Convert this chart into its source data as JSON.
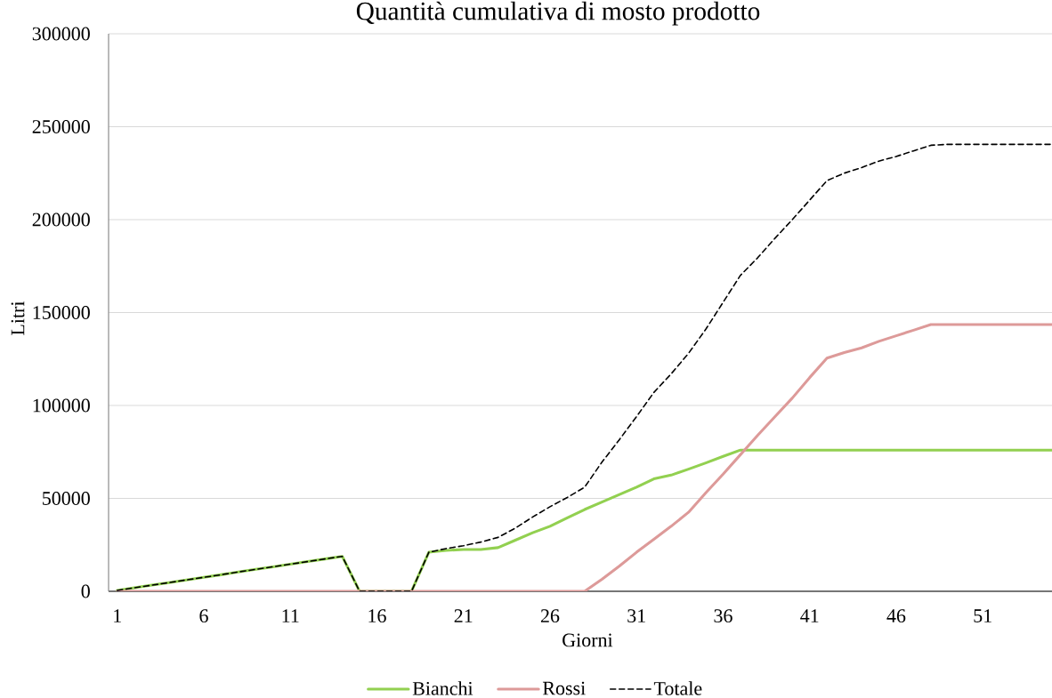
{
  "chart_data": {
    "type": "line",
    "title": "Quantità cumulativa di mosto prodotto",
    "xlabel": "Giorni",
    "ylabel": "Litri",
    "x": [
      1,
      2,
      3,
      4,
      5,
      6,
      7,
      8,
      9,
      10,
      11,
      12,
      13,
      14,
      15,
      16,
      17,
      18,
      19,
      20,
      21,
      22,
      23,
      24,
      25,
      26,
      27,
      28,
      29,
      30,
      31,
      32,
      33,
      34,
      35,
      36,
      37,
      38,
      39,
      40,
      41,
      42,
      43,
      44,
      45,
      46,
      47,
      48,
      49,
      50,
      51,
      52,
      53,
      54,
      55
    ],
    "xlim": [
      0.5,
      55
    ],
    "xticks": [
      1,
      6,
      11,
      16,
      21,
      26,
      31,
      36,
      41,
      46,
      51
    ],
    "ylim": [
      0,
      300000
    ],
    "yticks": [
      0,
      50000,
      100000,
      150000,
      200000,
      250000,
      300000
    ],
    "grid": "y",
    "legend": "bottom",
    "series": [
      {
        "name": "Bianchi",
        "color": "#92d050",
        "values": [
          500,
          1900,
          3300,
          4700,
          6100,
          7500,
          8900,
          10400,
          11800,
          13200,
          14600,
          16000,
          17400,
          18800,
          0,
          0,
          0,
          0,
          21000,
          22000,
          22500,
          22500,
          23500,
          27500,
          31500,
          35000,
          39500,
          44000,
          48000,
          52000,
          56000,
          60500,
          62500,
          65700,
          69100,
          72600,
          76000,
          76000,
          76000,
          76000,
          76000,
          76000,
          76000,
          76000,
          76000,
          76000,
          76000,
          76000,
          76000,
          76000,
          76000,
          76000,
          76000,
          76000,
          76000
        ]
      },
      {
        "name": "Rossi",
        "color": "#dd9a99",
        "values": [
          0,
          0,
          0,
          0,
          0,
          0,
          0,
          0,
          0,
          0,
          0,
          0,
          0,
          0,
          0,
          0,
          0,
          0,
          0,
          0,
          0,
          0,
          0,
          0,
          0,
          0,
          0,
          0,
          6500,
          13500,
          21000,
          28000,
          35000,
          42500,
          53000,
          63000,
          73500,
          84000,
          94000,
          104000,
          115000,
          125500,
          128500,
          131000,
          134500,
          137500,
          140500,
          143500,
          143500,
          143500,
          143500,
          143500,
          143500,
          143500,
          143500
        ]
      },
      {
        "name": "Totale",
        "color": "#000000",
        "line_style": "dashed",
        "values": [
          500,
          1900,
          3300,
          4700,
          6100,
          7500,
          8900,
          10400,
          11800,
          13200,
          14600,
          16000,
          17400,
          18800,
          0,
          0,
          0,
          0,
          21000,
          23000,
          24500,
          26500,
          29000,
          34000,
          40000,
          45500,
          50500,
          56000,
          69500,
          81500,
          94000,
          107000,
          117000,
          128000,
          141000,
          155500,
          170000,
          179500,
          190000,
          200000,
          210500,
          221000,
          225000,
          228000,
          231500,
          234000,
          237000,
          240000,
          240500,
          240500,
          240500,
          240500,
          240500,
          240500,
          240500
        ]
      }
    ]
  }
}
